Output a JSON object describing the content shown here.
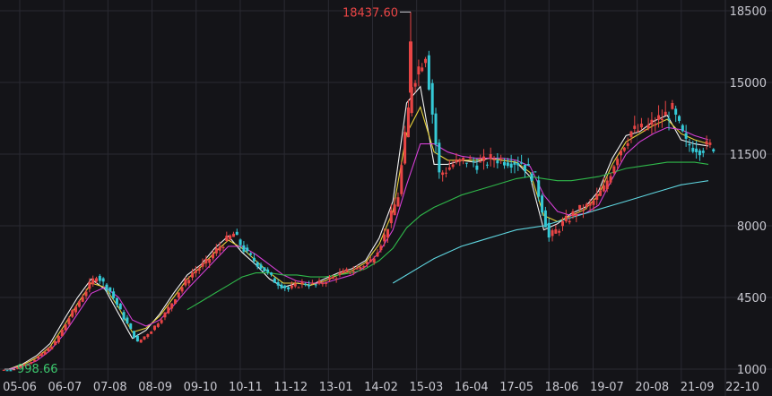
{
  "chart_data": {
    "type": "candlestick",
    "y_ticks": [
      1000,
      4500,
      8000,
      11500,
      15000,
      18500
    ],
    "ylim": [
      1000,
      18500
    ],
    "x_ticks": [
      "05-06",
      "06-07",
      "07-08",
      "08-09",
      "09-10",
      "10-11",
      "11-12",
      "13-01",
      "14-02",
      "15-03",
      "16-04",
      "17-05",
      "18-06",
      "19-07",
      "20-08",
      "21-09",
      "22-10"
    ],
    "grid": true,
    "annotations": {
      "high": "18437.60",
      "low": "998.66"
    },
    "colors": {
      "up": "#e84545",
      "down": "#35c9d6",
      "ma_short": "#f2f2f2",
      "ma_mid": "#e8d23a",
      "ma_long": "#d43fd4",
      "ma_120": "#2fb84a",
      "ma_250": "#5fd6e0",
      "grid": "#2a2a32",
      "background": "#141418"
    },
    "series": [
      {
        "name": "",
        "key": "close",
        "x": [
          "05-06",
          "06-01",
          "06-07",
          "07-01",
          "07-04",
          "07-08",
          "07-11",
          "08-03",
          "08-06",
          "08-09",
          "08-12",
          "09-03",
          "09-06",
          "09-10",
          "10-01",
          "10-05",
          "10-08",
          "10-11",
          "11-03",
          "11-07",
          "11-12",
          "12-05",
          "12-09",
          "13-01",
          "13-06",
          "13-10",
          "14-02",
          "14-07",
          "14-11",
          "15-03",
          "15-06",
          "15-09",
          "16-01",
          "16-04",
          "16-08",
          "17-01",
          "17-05",
          "17-09",
          "18-01",
          "18-06",
          "18-10",
          "19-02",
          "19-07",
          "19-11",
          "20-03",
          "20-08",
          "20-12",
          "21-04",
          "21-09",
          "22-01",
          "22-05",
          "22-10"
        ],
        "values": [
          1000,
          1300,
          1700,
          2300,
          3500,
          4600,
          5600,
          4800,
          3500,
          2300,
          2900,
          3700,
          4800,
          5700,
          6200,
          7000,
          7600,
          6600,
          6000,
          5300,
          4900,
          5200,
          5100,
          5400,
          5700,
          5900,
          6300,
          7500,
          9500,
          15000,
          16500,
          10500,
          11000,
          11200,
          11000,
          11300,
          11200,
          11100,
          10300,
          7400,
          8100,
          8700,
          9000,
          9800,
          11500,
          12600,
          12700,
          13200,
          13600,
          12000,
          11800,
          11900
        ]
      }
    ],
    "ma_series": [
      {
        "key": "ma_short",
        "values": [
          1000,
          1250,
          1650,
          2250,
          3400,
          4500,
          5400,
          4900,
          3700,
          2500,
          2900,
          3700,
          4700,
          5600,
          6100,
          6900,
          7500,
          6700,
          6100,
          5400,
          5000,
          5200,
          5100,
          5400,
          5700,
          5900,
          6300,
          7400,
          9200,
          14000,
          14800,
          11000,
          11000,
          11200,
          11100,
          11300,
          11200,
          11100,
          10400,
          7800,
          8100,
          8600,
          8900,
          9700,
          11300,
          12400,
          12600,
          13100,
          13400,
          12200,
          12000,
          11900
        ]
      },
      {
        "key": "ma_mid",
        "values": [
          1000,
          1200,
          1550,
          2100,
          3100,
          4200,
          5200,
          5000,
          4000,
          2800,
          3000,
          3600,
          4500,
          5400,
          6000,
          6700,
          7300,
          6900,
          6300,
          5700,
          5200,
          5200,
          5100,
          5300,
          5600,
          5800,
          6200,
          7100,
          8700,
          12500,
          13800,
          11600,
          11200,
          11200,
          11200,
          11300,
          11200,
          11100,
          10600,
          8500,
          8200,
          8500,
          8800,
          9500,
          11000,
          12100,
          12500,
          12900,
          13200,
          12500,
          12200,
          12000
        ]
      },
      {
        "key": "ma_long",
        "values": [
          1000,
          1150,
          1400,
          1900,
          2700,
          3700,
          4700,
          5000,
          4500,
          3400,
          3100,
          3400,
          4100,
          4900,
          5600,
          6300,
          7000,
          7000,
          6600,
          6100,
          5600,
          5300,
          5200,
          5200,
          5400,
          5600,
          6000,
          6700,
          7800,
          10000,
          12000,
          12000,
          11600,
          11400,
          11300,
          11300,
          11300,
          11200,
          10900,
          9500,
          8700,
          8500,
          8600,
          9000,
          10300,
          11500,
          12100,
          12500,
          12800,
          12700,
          12400,
          12200
        ]
      },
      {
        "key": "ma_120",
        "values": [
          null,
          null,
          null,
          null,
          null,
          null,
          null,
          null,
          null,
          null,
          null,
          null,
          null,
          3900,
          4300,
          4700,
          5100,
          5500,
          5700,
          5700,
          5600,
          5600,
          5500,
          5500,
          5600,
          5700,
          5900,
          6300,
          6900,
          7900,
          8500,
          8900,
          9200,
          9500,
          9700,
          9900,
          10100,
          10300,
          10400,
          10300,
          10200,
          10200,
          10300,
          10400,
          10600,
          10800,
          10900,
          11000,
          11100,
          11100,
          11100,
          11000
        ]
      },
      {
        "key": "ma_250",
        "values": [
          null,
          null,
          null,
          null,
          null,
          null,
          null,
          null,
          null,
          null,
          null,
          null,
          null,
          null,
          null,
          null,
          null,
          null,
          null,
          null,
          null,
          null,
          null,
          null,
          null,
          null,
          null,
          null,
          5200,
          5600,
          6000,
          6400,
          6700,
          7000,
          7200,
          7400,
          7600,
          7800,
          7900,
          8000,
          8200,
          8400,
          8600,
          8800,
          9000,
          9200,
          9400,
          9600,
          9800,
          10000,
          10100,
          10200
        ]
      }
    ]
  }
}
